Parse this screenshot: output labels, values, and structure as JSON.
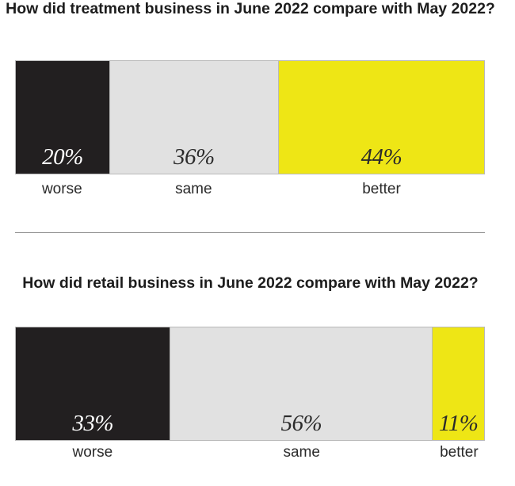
{
  "colors": {
    "worse": "#221f20",
    "same": "#e1e1e1",
    "better": "#eee615",
    "pct_dark_bg": "#ffffff",
    "pct_light_bg": "#2b2b2b"
  },
  "chart_data": [
    {
      "type": "bar",
      "orientation": "horizontal-stacked-100",
      "title": "How did treatment business in June 2022 compare with May 2022?",
      "categories": [
        "worse",
        "same",
        "better"
      ],
      "values": [
        20,
        36,
        44
      ],
      "labels": [
        "20%",
        "36%",
        "44%"
      ],
      "unit": "%"
    },
    {
      "type": "bar",
      "orientation": "horizontal-stacked-100",
      "title": "How did retail business in June 2022 compare with May 2022?",
      "categories": [
        "worse",
        "same",
        "better"
      ],
      "values": [
        33,
        56,
        11
      ],
      "labels": [
        "33%",
        "56%",
        "11%"
      ],
      "unit": "%"
    }
  ]
}
